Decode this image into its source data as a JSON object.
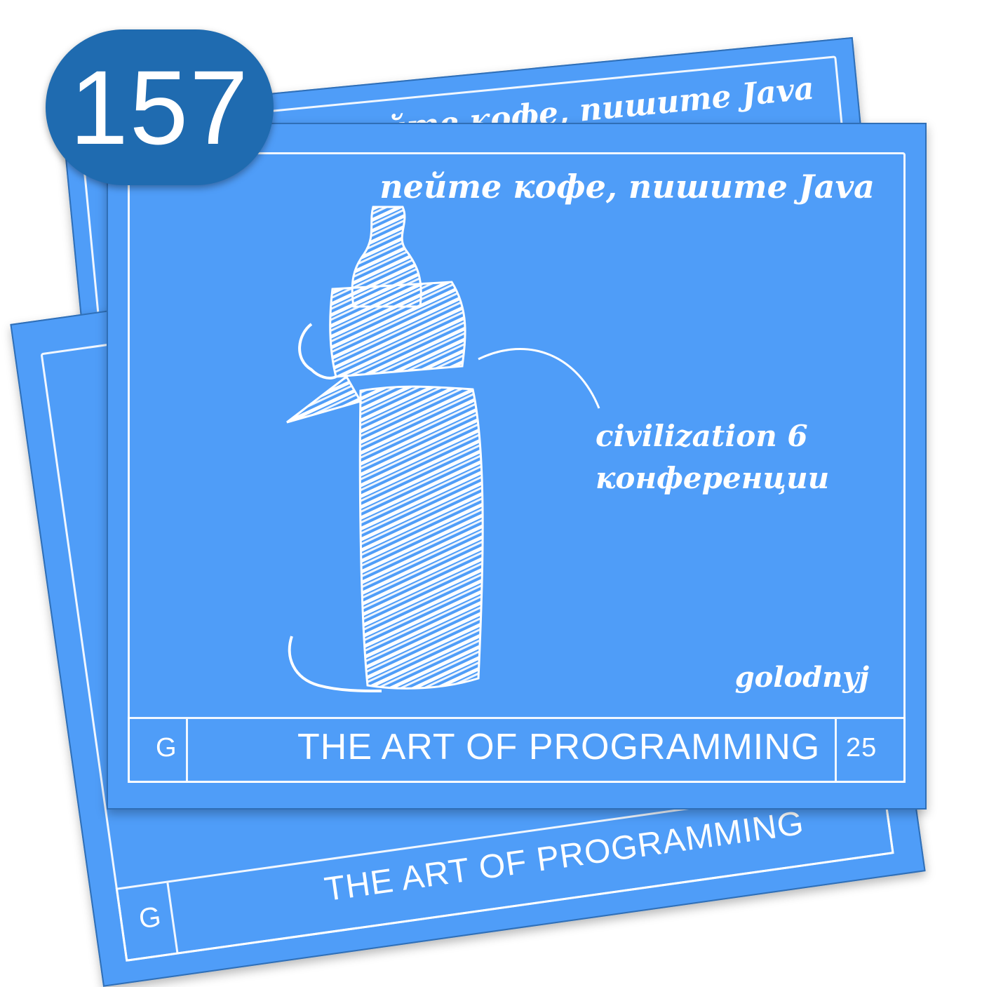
{
  "episode_number": "157",
  "back_card": {
    "slogan": "пейте кофе, пишите Java"
  },
  "middle_card": {
    "title": "THE ART OF PROGRAMMING",
    "left_letter": "G"
  },
  "front_card": {
    "slogan": "пейте кофе, пишите Java",
    "note_line1": "civilization 6",
    "note_line2": "конференции",
    "author": "golodnyj",
    "left_letter": "G",
    "title": "THE ART OF PROGRAMMING",
    "right_number": "25"
  },
  "colors": {
    "card_blue": "#4f9df8",
    "badge_blue": "#1f6bb0",
    "chalk": "#ffffff"
  },
  "illustration": "baby-bottle-sketch"
}
